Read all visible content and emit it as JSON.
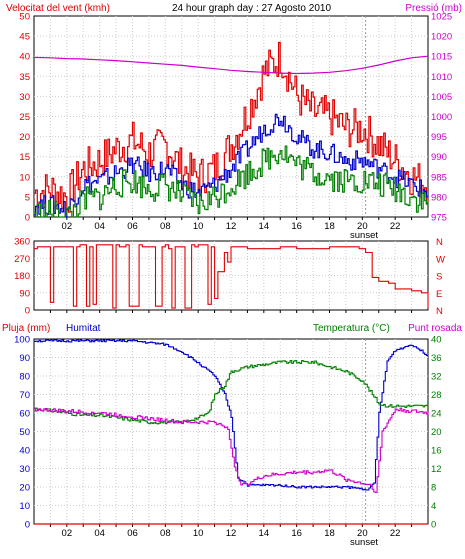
{
  "colors": {
    "wind": "#e00000",
    "gust": "#e00000",
    "avg": "#0000cc",
    "green": "#008000",
    "pressure": "#cc00cc",
    "humidity": "#0000cc",
    "temperature": "#008000",
    "dewpoint": "#cc00cc",
    "rain": "#e00000",
    "direction": "#e00000",
    "grid": "#cccccc",
    "frame": "#000000"
  },
  "chart_data": [
    {
      "type": "line",
      "title": "24 hour graph day : 27 Agosto 2010",
      "left_label": "Velocitat del vent (kmh)",
      "right_label": "Pressió (mb)",
      "xticks": [
        "02",
        "04",
        "06",
        "08",
        "10",
        "12",
        "14",
        "16",
        "18",
        "20",
        "22"
      ],
      "sunset_label": "sunset",
      "ylim": [
        0,
        50
      ],
      "yticks": [
        0,
        5,
        10,
        15,
        20,
        25,
        30,
        35,
        40,
        45,
        50
      ],
      "y2lim": [
        975,
        1025
      ],
      "y2ticks": [
        975,
        980,
        985,
        990,
        995,
        1000,
        1005,
        1010,
        1015,
        1020,
        1025
      ],
      "x": [
        0,
        1,
        2,
        3,
        4,
        5,
        6,
        7,
        8,
        9,
        10,
        11,
        12,
        13,
        14,
        15,
        16,
        17,
        18,
        19,
        20,
        21,
        22,
        23,
        24
      ],
      "series": [
        {
          "role": "gust",
          "values": [
            6,
            7,
            5,
            12,
            14,
            17,
            19,
            16,
            18,
            12,
            10,
            12,
            18,
            26,
            36,
            40,
            30,
            26,
            25,
            22,
            22,
            18,
            14,
            10,
            8
          ]
        },
        {
          "role": "avg",
          "values": [
            3,
            3,
            2,
            8,
            9,
            11,
            13,
            11,
            12,
            8,
            6,
            8,
            12,
            17,
            22,
            25,
            20,
            17,
            16,
            14,
            14,
            12,
            10,
            8,
            6
          ]
        },
        {
          "role": "low",
          "values": [
            1,
            1,
            0,
            4,
            5,
            8,
            9,
            7,
            8,
            5,
            3,
            5,
            8,
            11,
            14,
            17,
            13,
            11,
            10,
            9,
            9,
            8,
            7,
            5,
            3
          ]
        },
        {
          "role": "pressure",
          "values": [
            1014.7,
            1014.6,
            1014.4,
            1014.3,
            1014.1,
            1013.9,
            1013.6,
            1013.3,
            1013.0,
            1012.7,
            1012.3,
            1011.9,
            1011.5,
            1011.2,
            1011.0,
            1010.8,
            1010.7,
            1010.8,
            1011.0,
            1011.4,
            1012.0,
            1012.8,
            1013.8,
            1014.6,
            1015.0
          ]
        }
      ]
    },
    {
      "type": "line",
      "ylim": [
        0,
        360
      ],
      "yticks": [
        0,
        90,
        180,
        270,
        360
      ],
      "compass": [
        "N",
        "W",
        "S",
        "E",
        "N"
      ],
      "series": [
        {
          "role": "direction",
          "x": [
            0,
            0.2,
            0.8,
            1.0,
            1.2,
            1.4,
            2.2,
            2.4,
            2.6,
            2.8,
            3.2,
            3.4,
            3.6,
            3.8,
            4.0,
            4.6,
            4.8,
            5.0,
            5.2,
            5.6,
            5.8,
            6.4,
            6.6,
            7.2,
            7.4,
            7.8,
            8.0,
            8.2,
            8.4,
            8.6,
            9.0,
            9.2,
            9.6,
            9.8,
            10.0,
            10.4,
            10.6,
            10.8,
            11.0,
            11.2,
            11.6,
            11.8,
            12.0,
            12.4,
            13.0,
            14.0,
            15.0,
            16.0,
            17.0,
            18.0,
            19.0,
            19.8,
            20.2,
            20.6,
            21.0,
            21.6,
            22.0,
            22.6,
            23.0,
            23.4,
            23.6,
            24.0
          ],
          "values": [
            320,
            330,
            330,
            40,
            330,
            330,
            330,
            20,
            330,
            340,
            20,
            330,
            30,
            340,
            340,
            340,
            10,
            340,
            330,
            340,
            20,
            340,
            330,
            330,
            20,
            330,
            340,
            320,
            10,
            330,
            330,
            10,
            340,
            330,
            340,
            340,
            30,
            330,
            60,
            200,
            300,
            250,
            330,
            330,
            320,
            320,
            330,
            320,
            320,
            330,
            330,
            320,
            300,
            170,
            150,
            140,
            110,
            110,
            100,
            100,
            90,
            10
          ]
        }
      ]
    },
    {
      "type": "line",
      "left_label": "Pluja (mm)",
      "left_label2": "Humitat",
      "right_label": "Temperatura (°C)",
      "right_label2": "Punt rosada",
      "ylim": [
        0,
        100
      ],
      "yticks": [
        0,
        10,
        20,
        30,
        40,
        50,
        60,
        70,
        80,
        90,
        100
      ],
      "y2lim": [
        0,
        40
      ],
      "y2ticks": [
        0,
        4,
        8,
        12,
        16,
        20,
        24,
        28,
        32,
        36,
        40
      ],
      "sunset_label": "sunset",
      "xticks": [
        "02",
        "04",
        "06",
        "08",
        "10",
        "12",
        "14",
        "16",
        "18",
        "20",
        "22"
      ],
      "series": [
        {
          "role": "humidity",
          "x": [
            0,
            2,
            4,
            6,
            7,
            8,
            9,
            10,
            11,
            11.6,
            12,
            12.4,
            13,
            14,
            15,
            16,
            17,
            18,
            19,
            20,
            20.4,
            20.7,
            21,
            21.5,
            22,
            23,
            24
          ],
          "values": [
            99,
            99,
            99,
            99,
            98,
            97,
            93,
            87,
            80,
            70,
            58,
            25,
            21,
            21,
            21,
            20,
            20,
            20,
            20,
            19,
            19,
            22,
            60,
            88,
            94,
            97,
            91
          ]
        },
        {
          "role": "temperature",
          "x": [
            0,
            1,
            2,
            3,
            4,
            5,
            6,
            7,
            8,
            9,
            10,
            10.6,
            11,
            11.6,
            12,
            13,
            14,
            15,
            16,
            17,
            18,
            19,
            20,
            20.6,
            21,
            21.6,
            22,
            23,
            24
          ],
          "values": [
            25,
            24.5,
            24,
            23.5,
            23.5,
            23,
            22.5,
            22,
            22,
            22,
            23,
            24,
            28,
            30,
            33,
            34,
            34.5,
            35,
            35,
            35,
            34,
            33,
            31,
            28,
            26,
            25.5,
            25.5,
            25.5,
            25.5
          ]
        },
        {
          "role": "dewpoint",
          "x": [
            0,
            4,
            6,
            7,
            8,
            9,
            10,
            11,
            11.8,
            12.2,
            12.6,
            13,
            14,
            15,
            16,
            17,
            18,
            19,
            20,
            20.5,
            20.8,
            21.2,
            22,
            23,
            24
          ],
          "values": [
            62,
            60,
            58,
            57,
            56,
            55,
            55,
            55,
            52,
            30,
            22,
            22,
            26,
            27,
            28,
            28,
            29,
            24,
            22,
            21,
            17,
            50,
            62,
            61,
            60
          ]
        },
        {
          "role": "rain",
          "x": [
            0,
            24
          ],
          "values": [
            0,
            0
          ]
        }
      ]
    }
  ]
}
